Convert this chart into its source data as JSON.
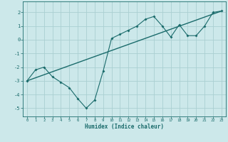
{
  "xlabel": "Humidex (Indice chaleur)",
  "bg_color": "#cce8ea",
  "grid_color": "#aacfd2",
  "line_color": "#1a6b6b",
  "xlim": [
    -0.5,
    23.5
  ],
  "ylim": [
    -5.6,
    2.8
  ],
  "xticks": [
    0,
    1,
    2,
    3,
    4,
    5,
    6,
    7,
    8,
    9,
    10,
    11,
    12,
    13,
    14,
    15,
    16,
    17,
    18,
    19,
    20,
    21,
    22,
    23
  ],
  "yticks": [
    -5,
    -4,
    -3,
    -2,
    -1,
    0,
    1,
    2
  ],
  "zigzag_x": [
    0,
    1,
    2,
    3,
    4,
    5,
    6,
    7,
    8,
    9,
    10,
    11,
    12,
    13,
    14,
    15,
    16,
    17,
    18,
    19,
    20,
    21,
    22,
    23
  ],
  "zigzag_y": [
    -3.0,
    -2.2,
    -2.0,
    -2.7,
    -3.1,
    -3.5,
    -4.3,
    -5.0,
    -4.4,
    -2.3,
    0.1,
    0.4,
    0.7,
    1.0,
    1.5,
    1.7,
    1.0,
    0.2,
    1.1,
    0.3,
    0.3,
    1.0,
    2.0,
    2.1
  ],
  "trend_x": [
    0,
    23
  ],
  "trend_y": [
    -3.0,
    2.1
  ]
}
